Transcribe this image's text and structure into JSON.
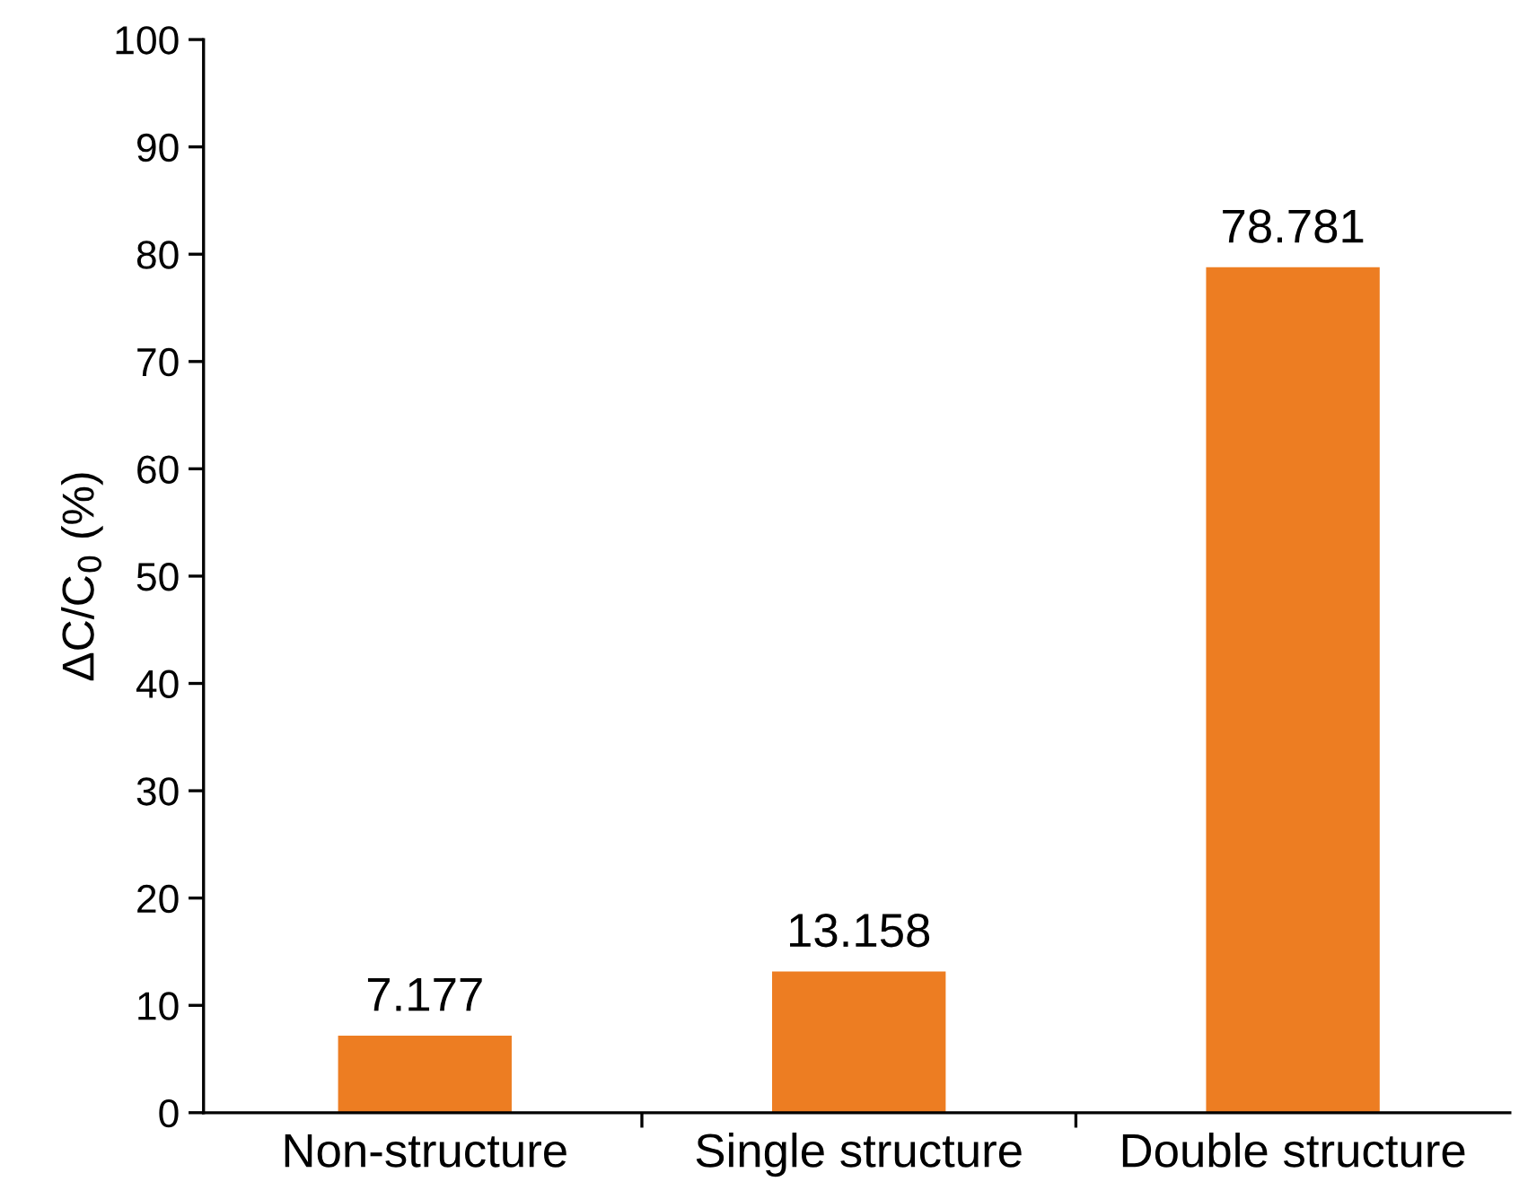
{
  "chart_data": {
    "type": "bar",
    "ylabel": "ΔC/C$_{0}$ (%)",
    "categories": [
      "Non-structure",
      "Single structure",
      "Double structure"
    ],
    "values": [
      7.177,
      13.158,
      78.781
    ],
    "color": "#ed7d22",
    "ylim": [
      0,
      100
    ],
    "yticks": [
      0,
      10,
      20,
      30,
      40,
      50,
      60,
      70,
      80,
      90,
      100
    ],
    "data_labels": true,
    "grid": false,
    "legend": false
  }
}
